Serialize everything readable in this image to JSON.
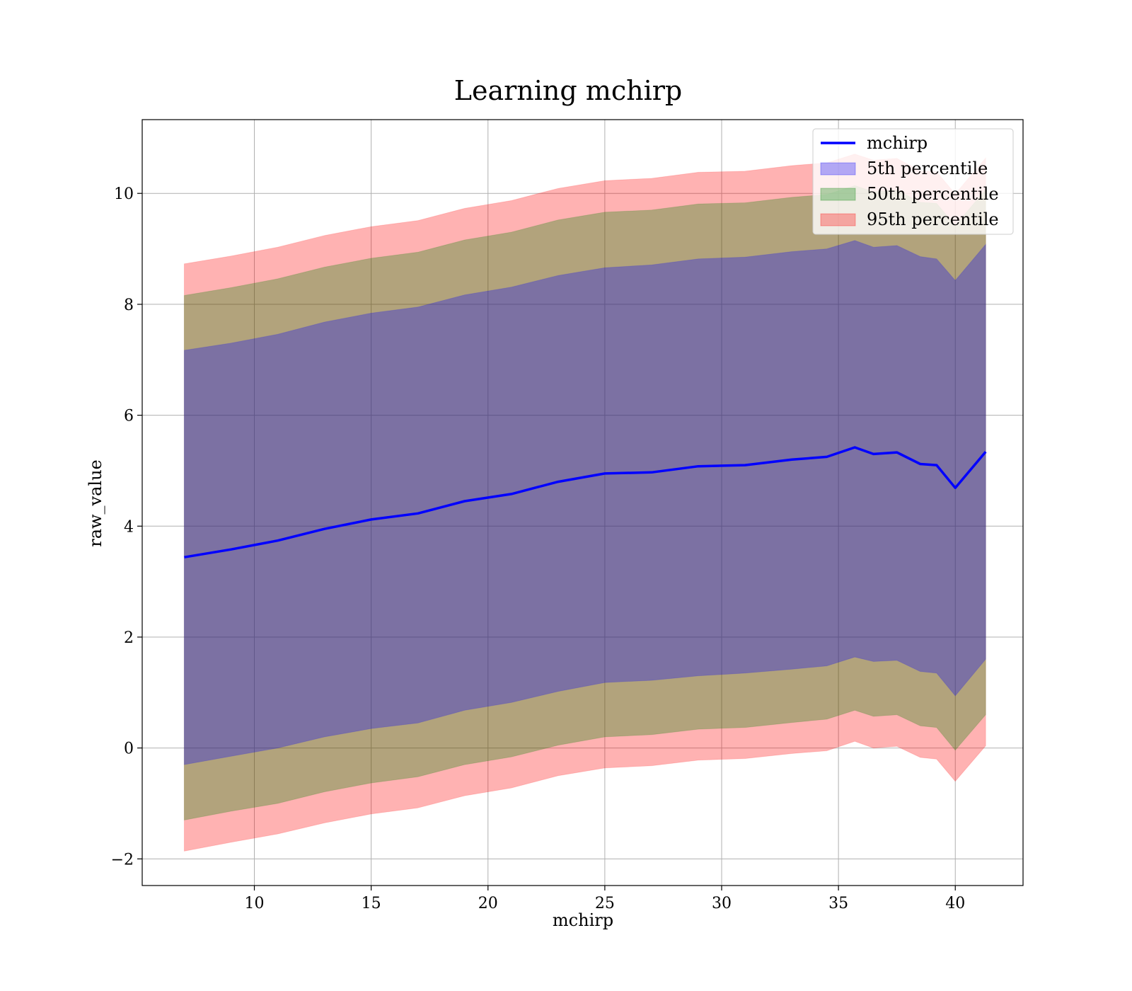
{
  "chart_data": {
    "type": "area",
    "title": "Learning mchirp",
    "xlabel": "mchirp",
    "ylabel": "raw_value",
    "xlim": [
      5.2,
      42.9
    ],
    "ylim": [
      -2.48,
      11.33
    ],
    "grid": true,
    "legend_position": "top-right",
    "x_ticks": [
      10,
      15,
      20,
      25,
      30,
      35,
      40
    ],
    "y_ticks": [
      -2,
      0,
      2,
      4,
      6,
      8,
      10
    ],
    "x_tick_labels": [
      "10",
      "15",
      "20",
      "25",
      "30",
      "35",
      "40"
    ],
    "y_tick_labels": [
      "−2",
      "0",
      "2",
      "4",
      "6",
      "8",
      "10"
    ],
    "x": [
      7.0,
      9.0,
      11.0,
      13.0,
      15.0,
      17.0,
      19.0,
      21.0,
      23.0,
      25.0,
      27.0,
      29.0,
      31.0,
      33.0,
      34.5,
      35.7,
      36.5,
      37.5,
      38.5,
      39.2,
      40.0,
      41.3
    ],
    "series": [
      {
        "name": "mchirp",
        "kind": "line",
        "color": "#0000ff",
        "values": [
          3.44,
          3.58,
          3.74,
          3.95,
          4.12,
          4.23,
          4.45,
          4.58,
          4.8,
          4.95,
          4.97,
          5.08,
          5.1,
          5.2,
          5.25,
          5.42,
          5.3,
          5.33,
          5.12,
          5.1,
          4.69,
          5.34
        ]
      },
      {
        "name": "5th percentile",
        "kind": "band",
        "color": "#0000ff",
        "opacity": 0.3,
        "lower": [
          -0.3,
          -0.15,
          0.0,
          0.2,
          0.35,
          0.45,
          0.68,
          0.82,
          1.02,
          1.18,
          1.22,
          1.3,
          1.35,
          1.42,
          1.48,
          1.64,
          1.56,
          1.58,
          1.38,
          1.35,
          0.94,
          1.6
        ],
        "upper": [
          7.17,
          7.3,
          7.46,
          7.68,
          7.84,
          7.95,
          8.17,
          8.31,
          8.52,
          8.66,
          8.71,
          8.82,
          8.85,
          8.95,
          9.0,
          9.15,
          9.03,
          9.06,
          8.86,
          8.82,
          8.43,
          9.08
        ]
      },
      {
        "name": "50th percentile",
        "kind": "band",
        "color": "#008000",
        "opacity": 0.3,
        "lower": [
          -1.3,
          -1.14,
          -1.0,
          -0.79,
          -0.63,
          -0.52,
          -0.3,
          -0.16,
          0.05,
          0.2,
          0.24,
          0.34,
          0.37,
          0.46,
          0.52,
          0.68,
          0.57,
          0.6,
          0.4,
          0.37,
          -0.04,
          0.6
        ],
        "upper": [
          8.16,
          8.3,
          8.46,
          8.67,
          8.83,
          8.94,
          9.16,
          9.3,
          9.52,
          9.66,
          9.7,
          9.81,
          9.83,
          9.93,
          9.98,
          10.14,
          10.03,
          10.06,
          9.84,
          9.82,
          9.42,
          10.07
        ]
      },
      {
        "name": "95th percentile",
        "kind": "band",
        "color": "#ff0000",
        "opacity": 0.3,
        "lower": [
          -1.86,
          -1.7,
          -1.55,
          -1.35,
          -1.19,
          -1.08,
          -0.86,
          -0.72,
          -0.5,
          -0.36,
          -0.32,
          -0.22,
          -0.19,
          -0.1,
          -0.05,
          0.12,
          0.0,
          0.03,
          -0.17,
          -0.2,
          -0.6,
          0.04
        ],
        "upper": [
          8.73,
          8.87,
          9.03,
          9.24,
          9.4,
          9.51,
          9.73,
          9.87,
          10.09,
          10.23,
          10.27,
          10.38,
          10.4,
          10.5,
          10.55,
          10.71,
          10.6,
          10.63,
          10.41,
          10.39,
          9.99,
          10.64
        ]
      }
    ]
  },
  "legend": {
    "items": [
      {
        "label": "mchirp",
        "kind": "line",
        "color": "#0000ff"
      },
      {
        "label": "5th percentile",
        "kind": "patch",
        "color": "#0000ff"
      },
      {
        "label": "50th percentile",
        "kind": "patch",
        "color": "#008000"
      },
      {
        "label": "95th percentile",
        "kind": "patch",
        "color": "#ff0000"
      }
    ]
  }
}
